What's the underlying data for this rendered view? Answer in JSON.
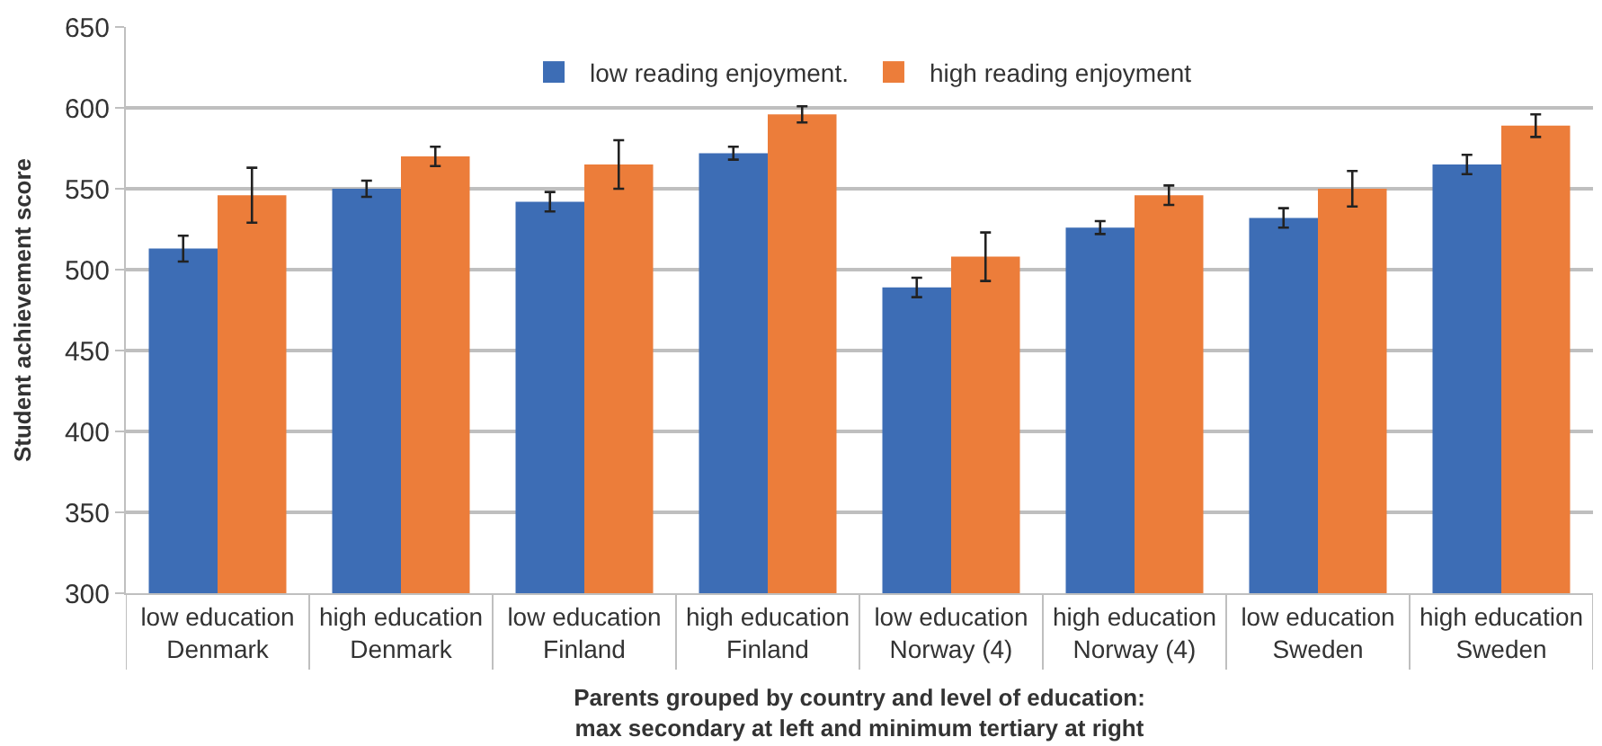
{
  "chart_data": {
    "type": "bar",
    "xlabel": "Parents grouped by country and level of education:\nmax secondary at left and minimum tertiary at right",
    "ylabel": "Student achievement score",
    "categories": [
      "low education\nDenmark",
      "high education\nDenmark",
      "low education\nFinland",
      "high education\nFinland",
      "low education\nNorway (4)",
      "high education\nNorway (4)",
      "low education\nSweden",
      "high education\nSweden"
    ],
    "series": [
      {
        "name": "low reading enjoyment.",
        "color": "#3d6db5",
        "values": [
          513,
          550,
          542,
          572,
          489,
          526,
          532,
          565
        ],
        "errors": [
          8,
          5,
          6,
          4,
          6,
          4,
          6,
          6
        ]
      },
      {
        "name": "high reading enjoyment",
        "color": "#ec7d3a",
        "values": [
          546,
          570,
          565,
          596,
          508,
          546,
          550,
          589
        ],
        "errors": [
          17,
          6,
          15,
          5,
          15,
          6,
          11,
          7
        ]
      }
    ],
    "ylim": [
      300,
      650
    ],
    "yticks": [
      300,
      350,
      400,
      450,
      500,
      550,
      600,
      650
    ],
    "grid": "y",
    "legend": "top"
  }
}
